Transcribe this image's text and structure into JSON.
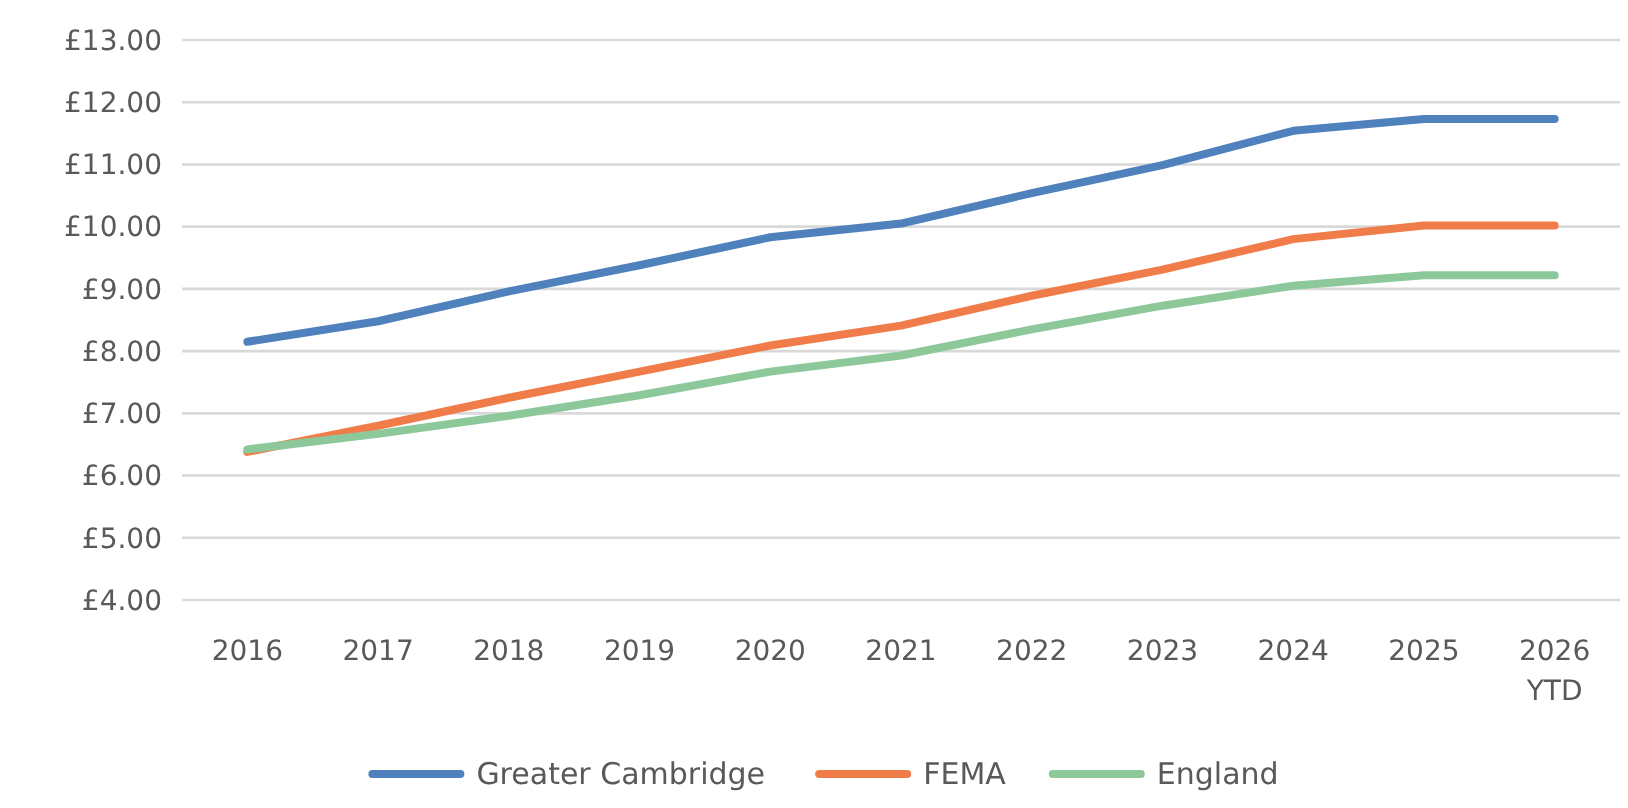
{
  "chart_data": {
    "type": "line",
    "categories": [
      "2016",
      "2017",
      "2018",
      "2019",
      "2020",
      "2021",
      "2022",
      "2023",
      "2024",
      "2025",
      "2026\nYTD"
    ],
    "series": [
      {
        "name": "Greater Cambridge",
        "color": "#4f81bd",
        "values": [
          8.15,
          8.48,
          8.96,
          9.38,
          9.83,
          10.05,
          10.54,
          10.99,
          11.54,
          11.73,
          11.73
        ]
      },
      {
        "name": "FEMA",
        "color": "#f07c4a",
        "values": [
          6.38,
          6.8,
          7.25,
          7.67,
          8.09,
          8.41,
          8.89,
          9.31,
          9.8,
          10.02,
          10.02
        ]
      },
      {
        "name": "England",
        "color": "#8cc89a",
        "values": [
          6.42,
          6.67,
          6.96,
          7.29,
          7.67,
          7.93,
          8.35,
          8.73,
          9.05,
          9.22,
          9.22
        ]
      }
    ],
    "ylim": [
      4,
      13
    ],
    "yticks": [
      {
        "value": 4,
        "label": "£4.00"
      },
      {
        "value": 5,
        "label": "£5.00"
      },
      {
        "value": 6,
        "label": "£6.00"
      },
      {
        "value": 7,
        "label": "£7.00"
      },
      {
        "value": 8,
        "label": "£8.00"
      },
      {
        "value": 9,
        "label": "£9.00"
      },
      {
        "value": 10,
        "label": "£10.00"
      },
      {
        "value": 11,
        "label": "£11.00"
      },
      {
        "value": 12,
        "label": "£12.00"
      },
      {
        "value": 13,
        "label": "£13.00"
      }
    ],
    "grid": "y",
    "legend": "bottom",
    "marker": "none",
    "line_style": "solid"
  }
}
